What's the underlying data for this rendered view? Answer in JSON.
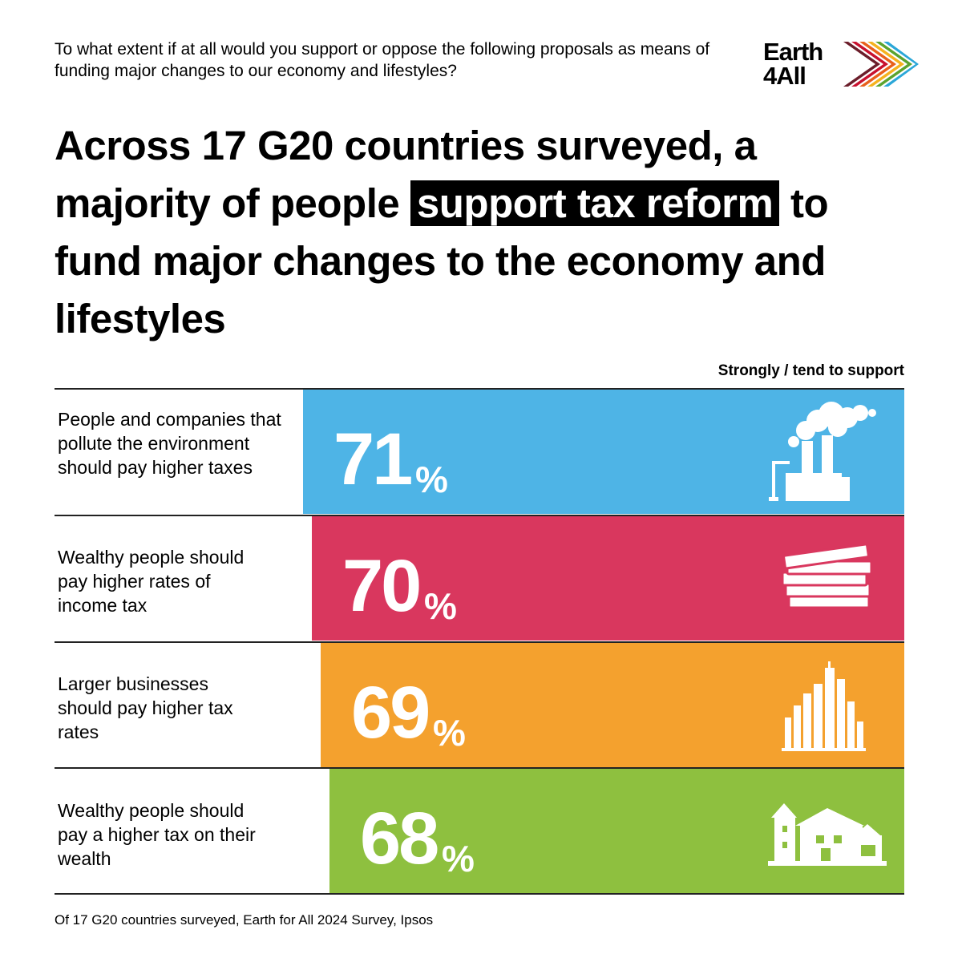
{
  "question": "To what extent if at all would you support or oppose the following proposals as means of funding major changes to our economy and lifestyles?",
  "logo": {
    "line1": "Earth",
    "line2": "4All"
  },
  "headline": {
    "before": "Across 17 G20 countries surveyed, a majority of people ",
    "highlight": "support tax reform",
    "after": " to fund major changes to the economy and lifestyles"
  },
  "column_header": "Strongly / tend to support",
  "footer": "Of 17 G20 countries surveyed, Earth for All 2024 Survey, Ipsos",
  "colors": {
    "bar1": "#4EB4E6",
    "bar2": "#D9375E",
    "bar3": "#F4A12E",
    "bar4": "#8EC03F",
    "text_on_bar": "#ffffff"
  },
  "chart_data": {
    "type": "bar",
    "orientation": "horizontal",
    "categories": [
      "People and companies that pollute the environment should pay higher taxes",
      "Wealthy people should pay higher rates of income tax",
      "Larger businesses should pay higher tax rates",
      "Wealthy people should pay a higher tax on their wealth"
    ],
    "values": [
      71,
      70,
      69,
      68
    ],
    "value_labels": [
      "71",
      "70",
      "69",
      "68"
    ],
    "unit": "%",
    "icons": [
      "factory-icon",
      "money-stack-icon",
      "skyscrapers-icon",
      "house-icon"
    ]
  }
}
